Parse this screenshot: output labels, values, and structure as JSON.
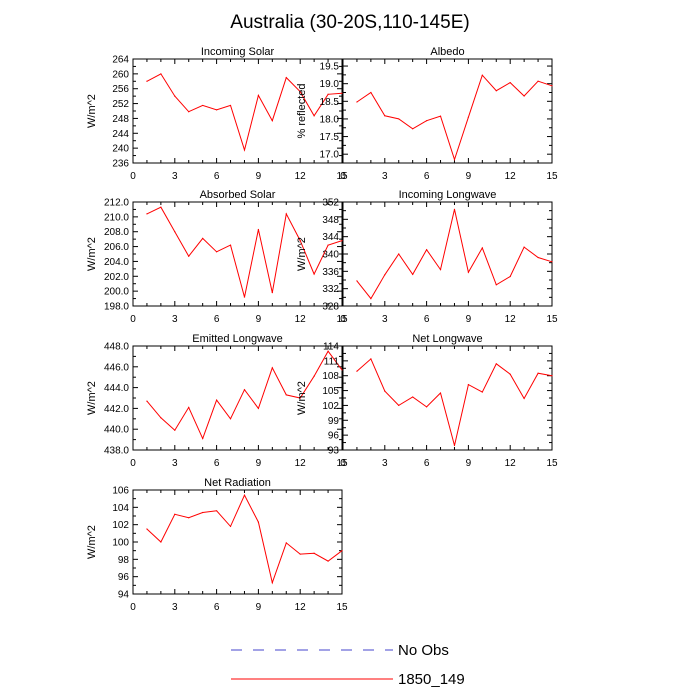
{
  "page": {
    "title": "Australia (30-20S,110-145E)"
  },
  "legend": {
    "entries": [
      {
        "label": "No Obs",
        "color": "#4444cc",
        "dash": "dashed"
      },
      {
        "label": "1850_149",
        "color": "#ff0000",
        "dash": "solid"
      }
    ]
  },
  "chart_data": [
    {
      "type": "line",
      "title": "Incoming Solar",
      "ylabel": "W/m^2",
      "xlim": [
        0,
        15
      ],
      "ylim": [
        236,
        264
      ],
      "xticks": [
        0,
        3,
        6,
        9,
        12,
        15
      ],
      "yticks": [
        236,
        240,
        244,
        248,
        252,
        256,
        260,
        264
      ],
      "ytick_labels": [
        "236",
        "240",
        "244",
        "248",
        "252",
        "256",
        "260",
        "264"
      ],
      "series": [
        {
          "name": "1850_149",
          "color": "#ff0000",
          "x": [
            1,
            2,
            3,
            4,
            5,
            6,
            7,
            8,
            9,
            10,
            11,
            12,
            13,
            14,
            15
          ],
          "y": [
            258.0,
            260.0,
            254.0,
            249.8,
            251.5,
            250.3,
            251.5,
            239.5,
            254.2,
            247.4,
            259.0,
            255.2,
            248.7,
            254.5,
            254.8
          ]
        }
      ]
    },
    {
      "type": "line",
      "title": "Albedo",
      "ylabel": "% reflected",
      "xlim": [
        0,
        15
      ],
      "ylim": [
        16.75,
        19.7
      ],
      "xticks": [
        0,
        3,
        6,
        9,
        12,
        15
      ],
      "yticks": [
        17.0,
        17.5,
        18.0,
        18.5,
        19.0,
        19.5
      ],
      "ytick_labels": [
        "17.0",
        "17.5",
        "18.0",
        "18.5",
        "19.0",
        "19.5"
      ],
      "series": [
        {
          "name": "1850_149",
          "color": "#ff0000",
          "x": [
            1,
            2,
            3,
            4,
            5,
            6,
            7,
            8,
            9,
            10,
            11,
            12,
            13,
            14,
            15
          ],
          "y": [
            18.48,
            18.75,
            18.09,
            18.0,
            17.72,
            17.95,
            18.08,
            16.85,
            18.05,
            19.24,
            18.8,
            19.03,
            18.65,
            19.07,
            18.94
          ]
        }
      ]
    },
    {
      "type": "line",
      "title": "Absorbed Solar",
      "ylabel": "W/m^2",
      "xlim": [
        0,
        15
      ],
      "ylim": [
        198,
        212
      ],
      "xticks": [
        0,
        3,
        6,
        9,
        12,
        15
      ],
      "yticks": [
        198,
        200,
        202,
        204,
        206,
        208,
        210,
        212
      ],
      "ytick_labels": [
        "198.0",
        "200.0",
        "202.0",
        "204.0",
        "206.0",
        "208.0",
        "210.0",
        "212.0"
      ],
      "series": [
        {
          "name": "1850_149",
          "color": "#ff0000",
          "x": [
            1,
            2,
            3,
            4,
            5,
            6,
            7,
            8,
            9,
            10,
            11,
            12,
            13,
            14,
            15
          ],
          "y": [
            210.4,
            211.3,
            208.0,
            204.7,
            207.1,
            205.3,
            206.2,
            199.2,
            208.3,
            199.8,
            210.4,
            206.8,
            202.3,
            206.2,
            206.8
          ]
        }
      ]
    },
    {
      "type": "line",
      "title": "Incoming Longwave",
      "ylabel": "W/m^2",
      "xlim": [
        0,
        15
      ],
      "ylim": [
        328,
        352
      ],
      "xticks": [
        0,
        3,
        6,
        9,
        12,
        15
      ],
      "yticks": [
        328,
        332,
        336,
        340,
        344,
        348,
        352
      ],
      "ytick_labels": [
        "328",
        "332",
        "336",
        "340",
        "344",
        "348",
        "352"
      ],
      "series": [
        {
          "name": "1850_149",
          "color": "#ff0000",
          "x": [
            1,
            2,
            3,
            4,
            5,
            6,
            7,
            8,
            9,
            10,
            11,
            12,
            13,
            14,
            15
          ],
          "y": [
            333.8,
            329.7,
            335.2,
            340.0,
            335.3,
            341.0,
            336.4,
            350.3,
            335.8,
            341.4,
            332.9,
            334.8,
            341.6,
            339.2,
            338.2
          ]
        }
      ]
    },
    {
      "type": "line",
      "title": "Emitted Longwave",
      "ylabel": "W/m^2",
      "xlim": [
        0,
        15
      ],
      "ylim": [
        438,
        448
      ],
      "xticks": [
        0,
        3,
        6,
        9,
        12,
        15
      ],
      "yticks": [
        438,
        440,
        442,
        444,
        446,
        448
      ],
      "ytick_labels": [
        "438.0",
        "440.0",
        "442.0",
        "444.0",
        "446.0",
        "448.0"
      ],
      "series": [
        {
          "name": "1850_149",
          "color": "#ff0000",
          "x": [
            1,
            2,
            3,
            4,
            5,
            6,
            7,
            8,
            9,
            10,
            11,
            12,
            13,
            14,
            15
          ],
          "y": [
            442.7,
            441.1,
            439.9,
            442.1,
            439.1,
            442.8,
            441.0,
            443.8,
            442.0,
            445.9,
            443.3,
            443.0,
            445.1,
            447.5,
            445.7
          ]
        }
      ]
    },
    {
      "type": "line",
      "title": "Net Longwave",
      "ylabel": "W/m^2",
      "xlim": [
        0,
        15
      ],
      "ylim": [
        93,
        114
      ],
      "xticks": [
        0,
        3,
        6,
        9,
        12,
        15
      ],
      "yticks": [
        93,
        96,
        99,
        102,
        105,
        108,
        111,
        114
      ],
      "ytick_labels": [
        "93",
        "96",
        "99",
        "102",
        "105",
        "108",
        "111",
        "114"
      ],
      "series": [
        {
          "name": "1850_149",
          "color": "#ff0000",
          "x": [
            1,
            2,
            3,
            4,
            5,
            6,
            7,
            8,
            9,
            10,
            11,
            12,
            13,
            14,
            15
          ],
          "y": [
            108.9,
            111.4,
            104.9,
            102.0,
            103.7,
            101.7,
            104.5,
            93.9,
            106.2,
            104.7,
            110.4,
            108.3,
            103.4,
            108.5,
            108.0
          ]
        }
      ]
    },
    {
      "type": "line",
      "title": "Net Radiation",
      "ylabel": "W/m^2",
      "xlim": [
        0,
        15
      ],
      "ylim": [
        94,
        106
      ],
      "xticks": [
        0,
        3,
        6,
        9,
        12,
        15
      ],
      "yticks": [
        94,
        96,
        98,
        100,
        102,
        104,
        106
      ],
      "ytick_labels": [
        "94",
        "96",
        "98",
        "100",
        "102",
        "104",
        "106"
      ],
      "series": [
        {
          "name": "1850_149",
          "color": "#ff0000",
          "x": [
            1,
            2,
            3,
            4,
            5,
            6,
            7,
            8,
            9,
            10,
            11,
            12,
            13,
            14,
            15
          ],
          "y": [
            101.5,
            100.0,
            103.2,
            102.8,
            103.4,
            103.6,
            101.8,
            105.4,
            102.3,
            95.3,
            99.9,
            98.6,
            98.7,
            97.8,
            99.0
          ]
        }
      ]
    }
  ]
}
